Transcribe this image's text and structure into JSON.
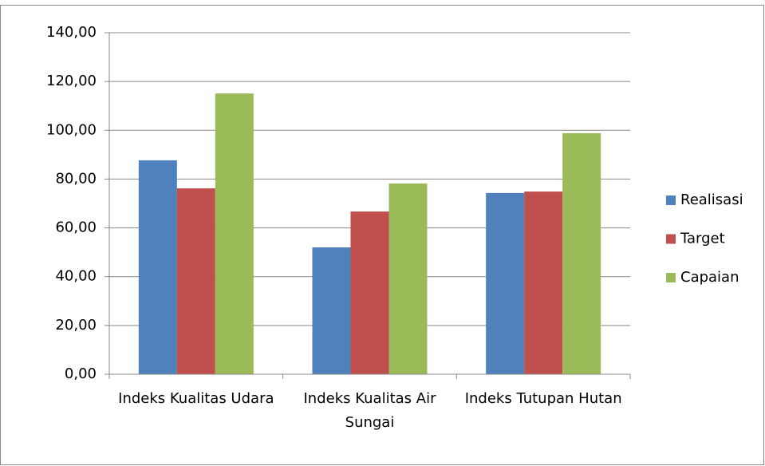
{
  "chart_data": {
    "type": "bar",
    "categories": [
      "Indeks Kualitas Udara",
      "Indeks Kualitas Air Sungai",
      "Indeks Tutupan Hutan"
    ],
    "series": [
      {
        "name": "Realisasi",
        "color": "#4f81bd",
        "values": [
          87.7,
          52.0,
          74.3
        ]
      },
      {
        "name": "Target",
        "color": "#c0504d",
        "values": [
          76.2,
          66.7,
          74.9
        ]
      },
      {
        "name": "Capaian",
        "color": "#9bbb59",
        "values": [
          115.1,
          78.2,
          98.8
        ]
      }
    ],
    "ylim": [
      0,
      140
    ],
    "yticks": [
      {
        "value": 0,
        "label": "0,00"
      },
      {
        "value": 20,
        "label": "20,00"
      },
      {
        "value": 40,
        "label": "40,00"
      },
      {
        "value": 60,
        "label": "60,00"
      },
      {
        "value": 80,
        "label": "80,00"
      },
      {
        "value": 100,
        "label": "100,00"
      },
      {
        "value": 120,
        "label": "120,00"
      },
      {
        "value": 140,
        "label": "140,00"
      }
    ],
    "grid": true,
    "legend": "right"
  }
}
